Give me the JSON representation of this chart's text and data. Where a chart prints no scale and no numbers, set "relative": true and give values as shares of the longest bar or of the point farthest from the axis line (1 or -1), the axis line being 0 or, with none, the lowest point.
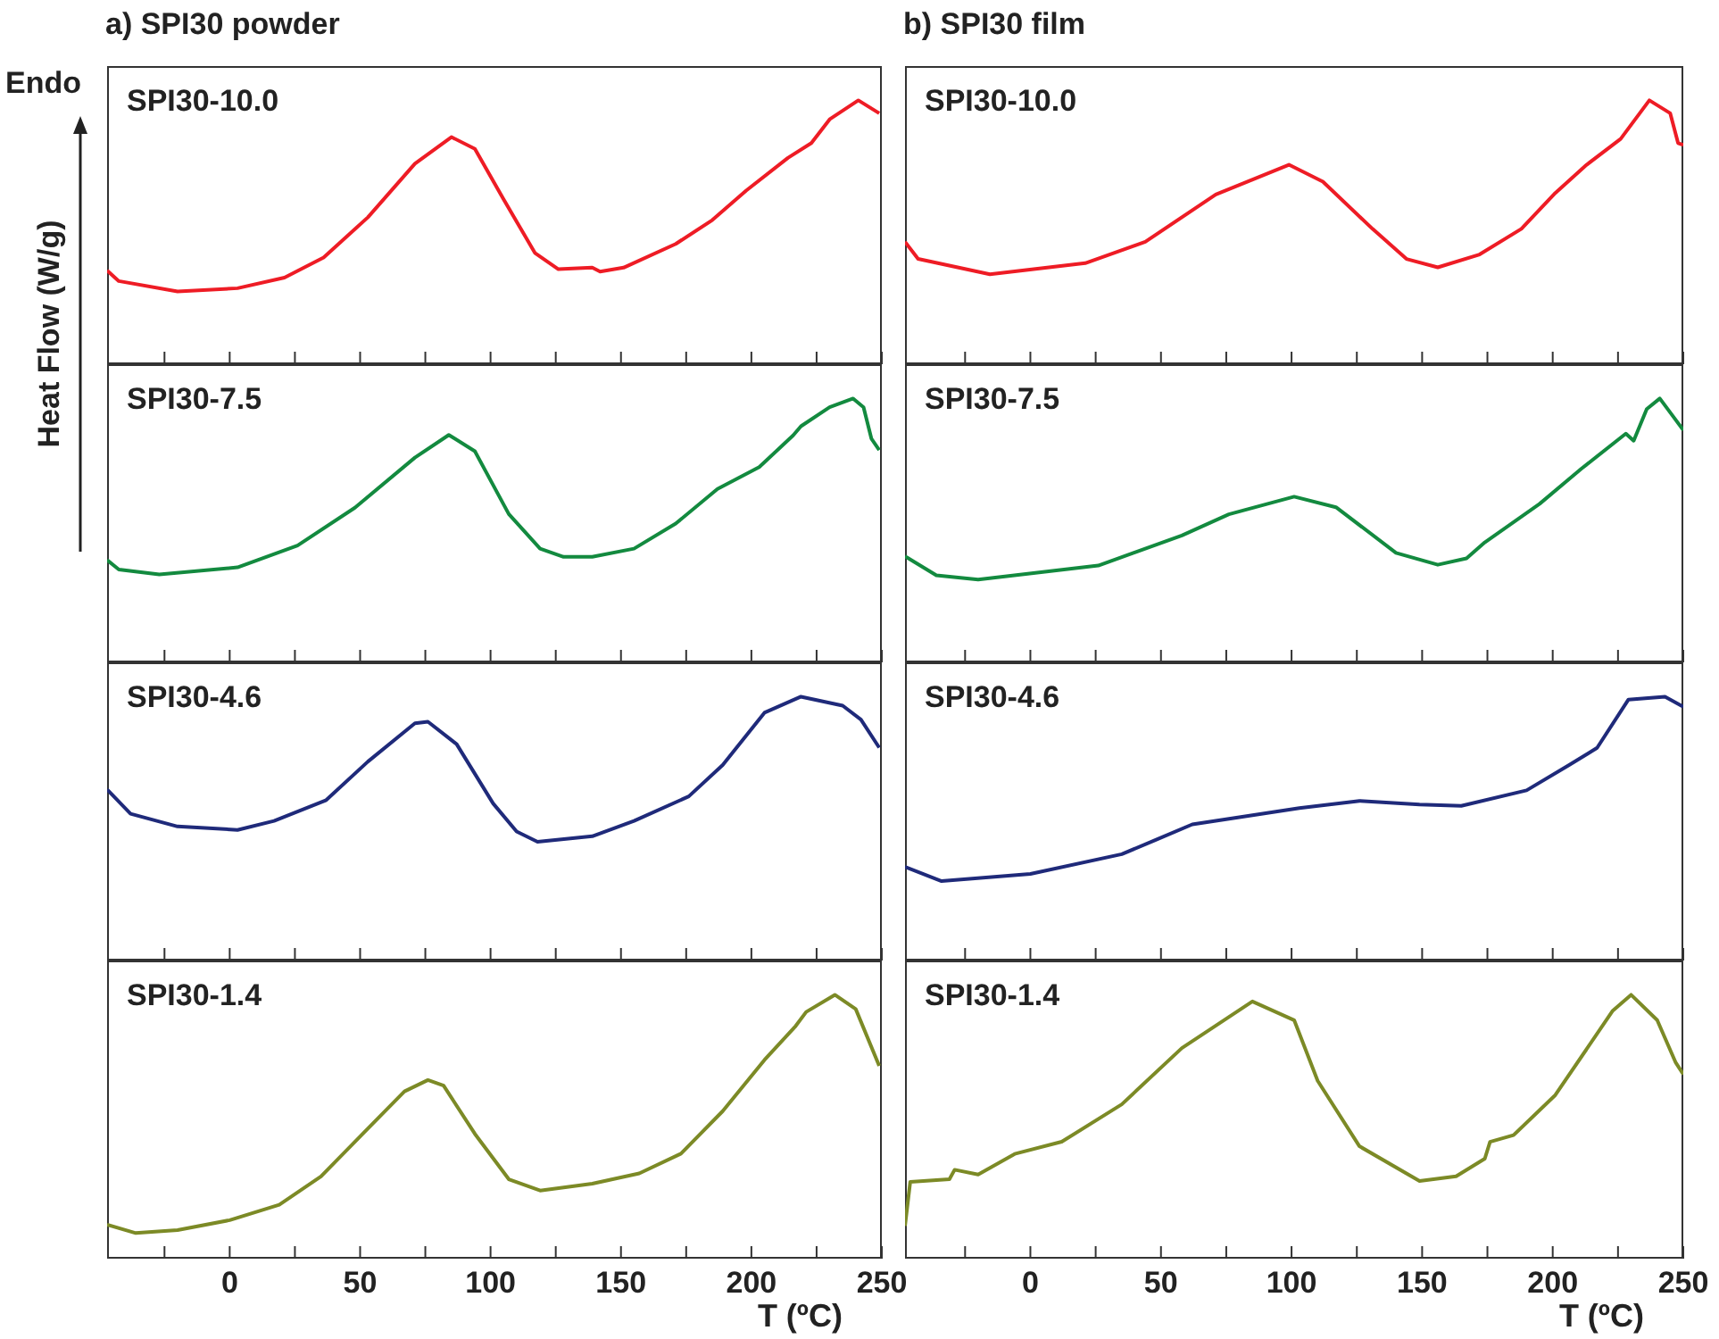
{
  "chart_data": [
    {
      "type": "line",
      "title": "a) SPI30 powder",
      "ylabel": "Heat Flow (W/g)",
      "annotations": [
        "Endo"
      ],
      "relative": true,
      "xlim": [
        -47,
        250
      ],
      "xticks": [
        {
          "value": -25,
          "label": null
        },
        0,
        {
          "value": 25,
          "label": null
        },
        50,
        {
          "value": 75,
          "label": null
        },
        100,
        {
          "value": 125,
          "label": null
        },
        150,
        {
          "value": 175,
          "label": null
        },
        200,
        {
          "value": 225,
          "label": null
        },
        250
      ],
      "tick_labels": false,
      "series": [
        {
          "name": "SPI30-10.0",
          "color": "#ee1c25",
          "x": [
            -47,
            -42.5,
            -20,
            3,
            21,
            36,
            53,
            71,
            85,
            94,
            105,
            117,
            126,
            139,
            142,
            151,
            171,
            185,
            198,
            214,
            223,
            230,
            241,
            249
          ],
          "values": [
            0.355,
            0.315,
            0.276,
            0.288,
            0.328,
            0.404,
            0.557,
            0.76,
            0.861,
            0.816,
            0.625,
            0.422,
            0.36,
            0.366,
            0.351,
            0.366,
            0.456,
            0.546,
            0.658,
            0.782,
            0.838,
            0.928,
            1,
            0.951
          ]
        }
      ]
    },
    {
      "type": "line",
      "title": "b) SPI30 film",
      "relative": true,
      "xlim": [
        -48,
        250
      ],
      "xticks": [
        {
          "value": -25,
          "label": null
        },
        0,
        {
          "value": 25,
          "label": null
        },
        50,
        {
          "value": 75,
          "label": null
        },
        100,
        {
          "value": 125,
          "label": null
        },
        150,
        {
          "value": 175,
          "label": null
        },
        200,
        {
          "value": 225,
          "label": null
        },
        250
      ],
      "tick_labels": false,
      "series": [
        {
          "name": "SPI30-10.0",
          "color": "#ee1c25",
          "x": [
            -48,
            -43,
            -15.5,
            21,
            44,
            71,
            99,
            112,
            131,
            144,
            156,
            172,
            188,
            201,
            213,
            226,
            237,
            245,
            248,
            250
          ],
          "values": [
            0.464,
            0.399,
            0.341,
            0.383,
            0.464,
            0.643,
            0.756,
            0.692,
            0.513,
            0.399,
            0.367,
            0.416,
            0.513,
            0.649,
            0.756,
            0.854,
            1,
            0.951,
            0.838,
            0.831
          ]
        }
      ]
    },
    {
      "type": "line",
      "relative": true,
      "xlim": [
        -47,
        250
      ],
      "xticks": [
        {
          "value": -25,
          "label": null
        },
        0,
        {
          "value": 25,
          "label": null
        },
        50,
        {
          "value": 75,
          "label": null
        },
        100,
        {
          "value": 125,
          "label": null
        },
        150,
        {
          "value": 175,
          "label": null
        },
        200,
        {
          "value": 225,
          "label": null
        },
        250
      ],
      "tick_labels": false,
      "series": [
        {
          "name": "SPI30-7.5",
          "color": "#138a3f",
          "x": [
            -47,
            -42.5,
            -27,
            3,
            26,
            48,
            71,
            84,
            94,
            107,
            119,
            128,
            139,
            155,
            171,
            187,
            203,
            216,
            219,
            230,
            239,
            243,
            246,
            249
          ],
          "values": [
            0.388,
            0.352,
            0.333,
            0.36,
            0.443,
            0.586,
            0.776,
            0.862,
            0.8,
            0.562,
            0.431,
            0.4,
            0.4,
            0.431,
            0.526,
            0.657,
            0.74,
            0.86,
            0.895,
            0.967,
            1,
            0.967,
            0.848,
            0.805
          ]
        }
      ]
    },
    {
      "type": "line",
      "relative": true,
      "xlim": [
        -48,
        250
      ],
      "xticks": [
        {
          "value": -25,
          "label": null
        },
        0,
        {
          "value": 25,
          "label": null
        },
        50,
        {
          "value": 75,
          "label": null
        },
        100,
        {
          "value": 125,
          "label": null
        },
        150,
        {
          "value": 175,
          "label": null
        },
        200,
        {
          "value": 225,
          "label": null
        },
        250
      ],
      "tick_labels": false,
      "series": [
        {
          "name": "SPI30-7.5",
          "color": "#138a3f",
          "x": [
            -48,
            -36,
            -20,
            26,
            58,
            76,
            101,
            117,
            140,
            156,
            167,
            174,
            195,
            211,
            228,
            231,
            236,
            241,
            245,
            250
          ],
          "values": [
            0.402,
            0.33,
            0.314,
            0.367,
            0.481,
            0.561,
            0.628,
            0.588,
            0.415,
            0.37,
            0.394,
            0.455,
            0.601,
            0.734,
            0.867,
            0.84,
            0.96,
            1,
            0.947,
            0.88
          ]
        }
      ]
    },
    {
      "type": "line",
      "relative": true,
      "xlim": [
        -47,
        250
      ],
      "xticks": [
        {
          "value": -25,
          "label": null
        },
        0,
        {
          "value": 25,
          "label": null
        },
        50,
        {
          "value": 75,
          "label": null
        },
        100,
        {
          "value": 125,
          "label": null
        },
        150,
        {
          "value": 175,
          "label": null
        },
        200,
        {
          "value": 225,
          "label": null
        },
        250
      ],
      "tick_labels": false,
      "series": [
        {
          "name": "SPI30-4.6",
          "color": "#1f2a7a",
          "x": [
            -47,
            -38,
            -20,
            3,
            17,
            37,
            53,
            71,
            76,
            87,
            101,
            110,
            118,
            139,
            155,
            176,
            189,
            205,
            219,
            235,
            242,
            249
          ],
          "values": [
            0.648,
            0.556,
            0.508,
            0.495,
            0.529,
            0.608,
            0.754,
            0.899,
            0.905,
            0.82,
            0.595,
            0.489,
            0.45,
            0.471,
            0.529,
            0.622,
            0.741,
            0.939,
            1,
            0.966,
            0.913,
            0.807
          ]
        }
      ]
    },
    {
      "type": "line",
      "relative": true,
      "xlim": [
        -48,
        250
      ],
      "xticks": [
        {
          "value": -25,
          "label": null
        },
        0,
        {
          "value": 25,
          "label": null
        },
        50,
        {
          "value": 75,
          "label": null
        },
        100,
        {
          "value": 125,
          "label": null
        },
        150,
        {
          "value": 175,
          "label": null
        },
        200,
        {
          "value": 225,
          "label": null
        },
        250
      ],
      "tick_labels": false,
      "series": [
        {
          "name": "SPI30-4.6",
          "color": "#1f2a7a",
          "x": [
            -48,
            -34,
            0,
            35,
            48,
            62,
            80,
            103,
            126,
            149,
            165,
            190,
            206,
            217,
            229,
            243,
            250
          ],
          "values": [
            0.355,
            0.301,
            0.328,
            0.403,
            0.457,
            0.516,
            0.543,
            0.578,
            0.605,
            0.591,
            0.586,
            0.645,
            0.739,
            0.806,
            0.989,
            1,
            0.962
          ]
        }
      ]
    },
    {
      "type": "line",
      "xlabel": "T (ºC)",
      "relative": true,
      "xlim": [
        -47,
        250
      ],
      "xticks": [
        {
          "value": -25,
          "label": null
        },
        0,
        {
          "value": 25,
          "label": null
        },
        50,
        {
          "value": 75,
          "label": null
        },
        100,
        {
          "value": 125,
          "label": null
        },
        150,
        {
          "value": 175,
          "label": null
        },
        200,
        {
          "value": 225,
          "label": null
        },
        250
      ],
      "tick_labels": "x",
      "series": [
        {
          "name": "SPI30-1.4",
          "color": "#7c8a26",
          "x": [
            -47,
            -36,
            -20,
            0,
            19,
            35,
            51,
            67,
            76,
            82,
            94,
            107,
            119,
            139,
            157,
            173,
            189,
            205,
            217,
            221,
            232,
            240,
            249
          ],
          "values": [
            0.129,
            0.097,
            0.108,
            0.146,
            0.204,
            0.312,
            0.473,
            0.634,
            0.677,
            0.656,
            0.473,
            0.301,
            0.258,
            0.284,
            0.323,
            0.398,
            0.559,
            0.753,
            0.882,
            0.935,
            1,
            0.946,
            0.731
          ]
        }
      ]
    },
    {
      "type": "line",
      "xlabel": "T (ºC)",
      "relative": true,
      "xlim": [
        -48,
        250
      ],
      "xticks": [
        {
          "value": -25,
          "label": null
        },
        0,
        {
          "value": 25,
          "label": null
        },
        50,
        {
          "value": 75,
          "label": null
        },
        100,
        {
          "value": 125,
          "label": null
        },
        150,
        {
          "value": 175,
          "label": null
        },
        200,
        {
          "value": 225,
          "label": null
        },
        250
      ],
      "tick_labels": "x",
      "series": [
        {
          "name": "SPI30-1.4",
          "color": "#7c8a26",
          "x": [
            -48,
            -46,
            -31,
            -29,
            -20,
            -6,
            12,
            35,
            58,
            85,
            101,
            110,
            126,
            149,
            163,
            174,
            176,
            185,
            201,
            223,
            230,
            240,
            247,
            250
          ],
          "values": [
            0.124,
            0.291,
            0.301,
            0.337,
            0.319,
            0.397,
            0.443,
            0.585,
            0.798,
            0.975,
            0.904,
            0.674,
            0.426,
            0.294,
            0.312,
            0.379,
            0.443,
            0.468,
            0.62,
            0.94,
            1,
            0.904,
            0.745,
            0.699
          ]
        }
      ]
    }
  ]
}
